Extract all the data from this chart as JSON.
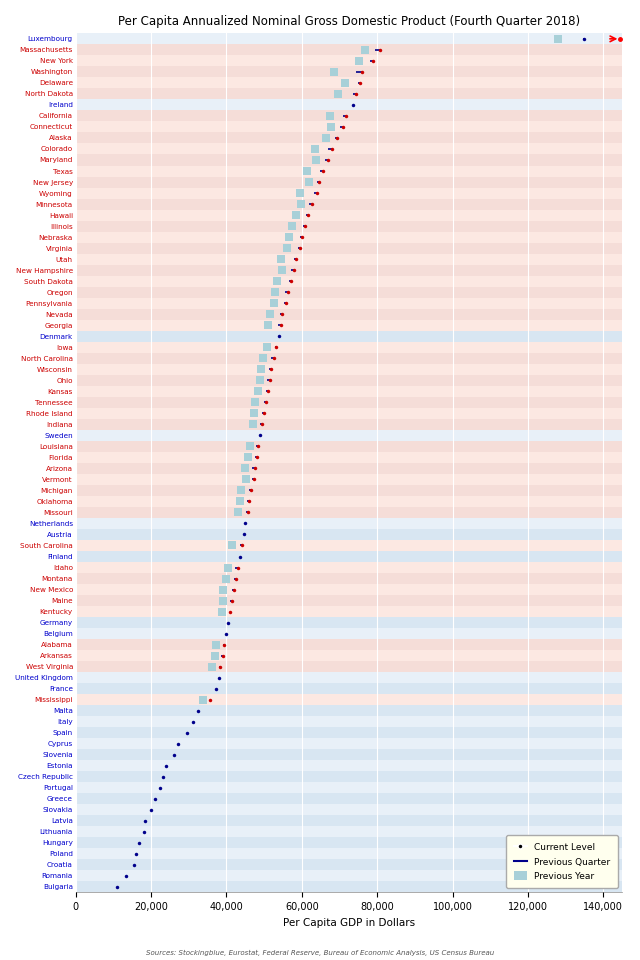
{
  "title": "Per Capita Annualized Nominal Gross Domestic Product (Fourth Quarter 2018)",
  "xlabel": "Per Capita GDP in Dollars",
  "source": "Sources: Stockingblue, Eurostat, Federal Reserve, Bureau of Economic Analysis, US Census Bureau",
  "entries": [
    {
      "name": "Luxembourg",
      "is_eu": true,
      "current": 134754,
      "prev_quarter": 134500,
      "prev_year": 128000
    },
    {
      "name": "Massachusetts",
      "is_eu": false,
      "current": 80702,
      "prev_quarter": 79500,
      "prev_year": 76800
    },
    {
      "name": "New York",
      "is_eu": false,
      "current": 78832,
      "prev_quarter": 78000,
      "prev_year": 75200
    },
    {
      "name": "Washington",
      "is_eu": false,
      "current": 75906,
      "prev_quarter": 74500,
      "prev_year": 68500
    },
    {
      "name": "Delaware",
      "is_eu": false,
      "current": 75371,
      "prev_quarter": 74800,
      "prev_year": 71500
    },
    {
      "name": "North Dakota",
      "is_eu": false,
      "current": 74277,
      "prev_quarter": 73500,
      "prev_year": 69500
    },
    {
      "name": "Ireland",
      "is_eu": true,
      "current": 73638,
      "prev_quarter": null,
      "prev_year": null
    },
    {
      "name": "California",
      "is_eu": false,
      "current": 71695,
      "prev_quarter": 70800,
      "prev_year": 67500
    },
    {
      "name": "Connecticut",
      "is_eu": false,
      "current": 70880,
      "prev_quarter": 70100,
      "prev_year": 67800
    },
    {
      "name": "Alaska",
      "is_eu": false,
      "current": 69413,
      "prev_quarter": 68800,
      "prev_year": 66500
    },
    {
      "name": "Colorado",
      "is_eu": false,
      "current": 68031,
      "prev_quarter": 67000,
      "prev_year": 63500
    },
    {
      "name": "Maryland",
      "is_eu": false,
      "current": 66895,
      "prev_quarter": 66200,
      "prev_year": 63800
    },
    {
      "name": "Texas",
      "is_eu": false,
      "current": 65685,
      "prev_quarter": 64800,
      "prev_year": 61500
    },
    {
      "name": "New Jersey",
      "is_eu": false,
      "current": 64672,
      "prev_quarter": 64000,
      "prev_year": 61800
    },
    {
      "name": "Wyoming",
      "is_eu": false,
      "current": 63966,
      "prev_quarter": 63200,
      "prev_year": 59500
    },
    {
      "name": "Minnesota",
      "is_eu": false,
      "current": 62833,
      "prev_quarter": 62000,
      "prev_year": 59800
    },
    {
      "name": "Hawaii",
      "is_eu": false,
      "current": 61601,
      "prev_quarter": 61000,
      "prev_year": 58500
    },
    {
      "name": "Illinois",
      "is_eu": false,
      "current": 60833,
      "prev_quarter": 60200,
      "prev_year": 57500
    },
    {
      "name": "Nebraska",
      "is_eu": false,
      "current": 60031,
      "prev_quarter": 59500,
      "prev_year": 56500
    },
    {
      "name": "Virginia",
      "is_eu": false,
      "current": 59432,
      "prev_quarter": 59000,
      "prev_year": 56000
    },
    {
      "name": "Utah",
      "is_eu": false,
      "current": 58454,
      "prev_quarter": 57800,
      "prev_year": 54500
    },
    {
      "name": "New Hampshire",
      "is_eu": false,
      "current": 57824,
      "prev_quarter": 57200,
      "prev_year": 54800
    },
    {
      "name": "South Dakota",
      "is_eu": false,
      "current": 57172,
      "prev_quarter": 56500,
      "prev_year": 53500
    },
    {
      "name": "Oregon",
      "is_eu": false,
      "current": 56291,
      "prev_quarter": 55600,
      "prev_year": 52800
    },
    {
      "name": "Pennsylvania",
      "is_eu": false,
      "current": 55800,
      "prev_quarter": 55200,
      "prev_year": 52500
    },
    {
      "name": "Nevada",
      "is_eu": false,
      "current": 54867,
      "prev_quarter": 54200,
      "prev_year": 51500
    },
    {
      "name": "Georgia",
      "is_eu": false,
      "current": 54357,
      "prev_quarter": 53800,
      "prev_year": 51000
    },
    {
      "name": "Denmark",
      "is_eu": true,
      "current": 53882,
      "prev_quarter": null,
      "prev_year": null
    },
    {
      "name": "Iowa",
      "is_eu": false,
      "current": 53273,
      "prev_quarter": 52800,
      "prev_year": 50800
    },
    {
      "name": "North Carolina",
      "is_eu": false,
      "current": 52498,
      "prev_quarter": 51900,
      "prev_year": 49800
    },
    {
      "name": "Wisconsin",
      "is_eu": false,
      "current": 51949,
      "prev_quarter": 51400,
      "prev_year": 49200
    },
    {
      "name": "Ohio",
      "is_eu": false,
      "current": 51456,
      "prev_quarter": 50900,
      "prev_year": 48800
    },
    {
      "name": "Kansas",
      "is_eu": false,
      "current": 50997,
      "prev_quarter": 50400,
      "prev_year": 48300
    },
    {
      "name": "Tennessee",
      "is_eu": false,
      "current": 50493,
      "prev_quarter": 49900,
      "prev_year": 47500
    },
    {
      "name": "Rhode Island",
      "is_eu": false,
      "current": 49927,
      "prev_quarter": 49400,
      "prev_year": 47200
    },
    {
      "name": "Indiana",
      "is_eu": false,
      "current": 49501,
      "prev_quarter": 49000,
      "prev_year": 47000
    },
    {
      "name": "Sweden",
      "is_eu": true,
      "current": 48966,
      "prev_quarter": 49300,
      "prev_year": null
    },
    {
      "name": "Louisiana",
      "is_eu": false,
      "current": 48462,
      "prev_quarter": 47900,
      "prev_year": 46200
    },
    {
      "name": "Florida",
      "is_eu": false,
      "current": 48102,
      "prev_quarter": 47500,
      "prev_year": 45800
    },
    {
      "name": "Arizona",
      "is_eu": false,
      "current": 47519,
      "prev_quarter": 46900,
      "prev_year": 45000
    },
    {
      "name": "Vermont",
      "is_eu": false,
      "current": 47231,
      "prev_quarter": 46700,
      "prev_year": 45200
    },
    {
      "name": "Michigan",
      "is_eu": false,
      "current": 46586,
      "prev_quarter": 46000,
      "prev_year": 44000
    },
    {
      "name": "Oklahoma",
      "is_eu": false,
      "current": 46025,
      "prev_quarter": 45500,
      "prev_year": 43500
    },
    {
      "name": "Missouri",
      "is_eu": false,
      "current": 45639,
      "prev_quarter": 45100,
      "prev_year": 43200
    },
    {
      "name": "Netherlands",
      "is_eu": true,
      "current": 45033,
      "prev_quarter": null,
      "prev_year": null
    },
    {
      "name": "Austria",
      "is_eu": true,
      "current": 44574,
      "prev_quarter": null,
      "prev_year": null
    },
    {
      "name": "South Carolina",
      "is_eu": false,
      "current": 44131,
      "prev_quarter": 43500,
      "prev_year": 41500
    },
    {
      "name": "Finland",
      "is_eu": true,
      "current": 43590,
      "prev_quarter": null,
      "prev_year": null
    },
    {
      "name": "Idaho",
      "is_eu": false,
      "current": 43009,
      "prev_quarter": 42400,
      "prev_year": 40500
    },
    {
      "name": "Montana",
      "is_eu": false,
      "current": 42436,
      "prev_quarter": 41900,
      "prev_year": 39800
    },
    {
      "name": "New Mexico",
      "is_eu": false,
      "current": 41952,
      "prev_quarter": 41400,
      "prev_year": 39200
    },
    {
      "name": "Maine",
      "is_eu": false,
      "current": 41452,
      "prev_quarter": 40900,
      "prev_year": 39000
    },
    {
      "name": "Kentucky",
      "is_eu": false,
      "current": 40971,
      "prev_quarter": 41300,
      "prev_year": 38800
    },
    {
      "name": "Germany",
      "is_eu": true,
      "current": 40405,
      "prev_quarter": null,
      "prev_year": null
    },
    {
      "name": "Belgium",
      "is_eu": true,
      "current": 39948,
      "prev_quarter": null,
      "prev_year": null
    },
    {
      "name": "Alabama",
      "is_eu": false,
      "current": 39411,
      "prev_quarter": 39000,
      "prev_year": 37200
    },
    {
      "name": "Arkansas",
      "is_eu": false,
      "current": 38987,
      "prev_quarter": 38600,
      "prev_year": 37000
    },
    {
      "name": "West Virginia",
      "is_eu": false,
      "current": 38360,
      "prev_quarter": 38000,
      "prev_year": 36200
    },
    {
      "name": "United Kingdom",
      "is_eu": true,
      "current": 37990,
      "prev_quarter": null,
      "prev_year": null
    },
    {
      "name": "France",
      "is_eu": true,
      "current": 37356,
      "prev_quarter": null,
      "prev_year": null
    },
    {
      "name": "Mississippi",
      "is_eu": false,
      "current": 35697,
      "prev_quarter": 35800,
      "prev_year": 33800
    },
    {
      "name": "Malta",
      "is_eu": true,
      "current": 32520,
      "prev_quarter": null,
      "prev_year": null
    },
    {
      "name": "Italy",
      "is_eu": true,
      "current": 31037,
      "prev_quarter": null,
      "prev_year": null
    },
    {
      "name": "Spain",
      "is_eu": true,
      "current": 29580,
      "prev_quarter": null,
      "prev_year": null
    },
    {
      "name": "Cyprus",
      "is_eu": true,
      "current": 27072,
      "prev_quarter": null,
      "prev_year": null
    },
    {
      "name": "Slovenia",
      "is_eu": true,
      "current": 26078,
      "prev_quarter": null,
      "prev_year": null
    },
    {
      "name": "Estonia",
      "is_eu": true,
      "current": 23929,
      "prev_quarter": null,
      "prev_year": null
    },
    {
      "name": "Czech Republic",
      "is_eu": true,
      "current": 23156,
      "prev_quarter": null,
      "prev_year": null
    },
    {
      "name": "Portugal",
      "is_eu": true,
      "current": 22503,
      "prev_quarter": null,
      "prev_year": null
    },
    {
      "name": "Greece",
      "is_eu": true,
      "current": 21051,
      "prev_quarter": null,
      "prev_year": null
    },
    {
      "name": "Slovakia",
      "is_eu": true,
      "current": 19995,
      "prev_quarter": null,
      "prev_year": null
    },
    {
      "name": "Latvia",
      "is_eu": true,
      "current": 18399,
      "prev_quarter": null,
      "prev_year": null
    },
    {
      "name": "Lithuania",
      "is_eu": true,
      "current": 18047,
      "prev_quarter": null,
      "prev_year": null
    },
    {
      "name": "Hungary",
      "is_eu": true,
      "current": 16930,
      "prev_quarter": null,
      "prev_year": null
    },
    {
      "name": "Poland",
      "is_eu": true,
      "current": 15924,
      "prev_quarter": null,
      "prev_year": null
    },
    {
      "name": "Croatia",
      "is_eu": true,
      "current": 15449,
      "prev_quarter": null,
      "prev_year": null
    },
    {
      "name": "Romania",
      "is_eu": true,
      "current": 13288,
      "prev_quarter": null,
      "prev_year": null
    },
    {
      "name": "Bulgaria",
      "is_eu": true,
      "current": 10974,
      "prev_quarter": null,
      "prev_year": null
    }
  ],
  "bg_color_eu": "#e8f0f8",
  "bg_color_us": "#fce8e2",
  "row_alt_eu": "#d8e6f2",
  "row_alt_us": "#f5ddd8",
  "dot_color_eu": "#00008B",
  "dot_color_us": "#cc0000",
  "prev_year_color": "#a8d0d8",
  "prev_quarter_color": "#00008B",
  "legend_bg": "#ffffee",
  "xlim": [
    0,
    145000
  ],
  "xticks": [
    0,
    20000,
    40000,
    60000,
    80000,
    100000,
    120000,
    140000
  ],
  "fig_bg": "#ffffff"
}
